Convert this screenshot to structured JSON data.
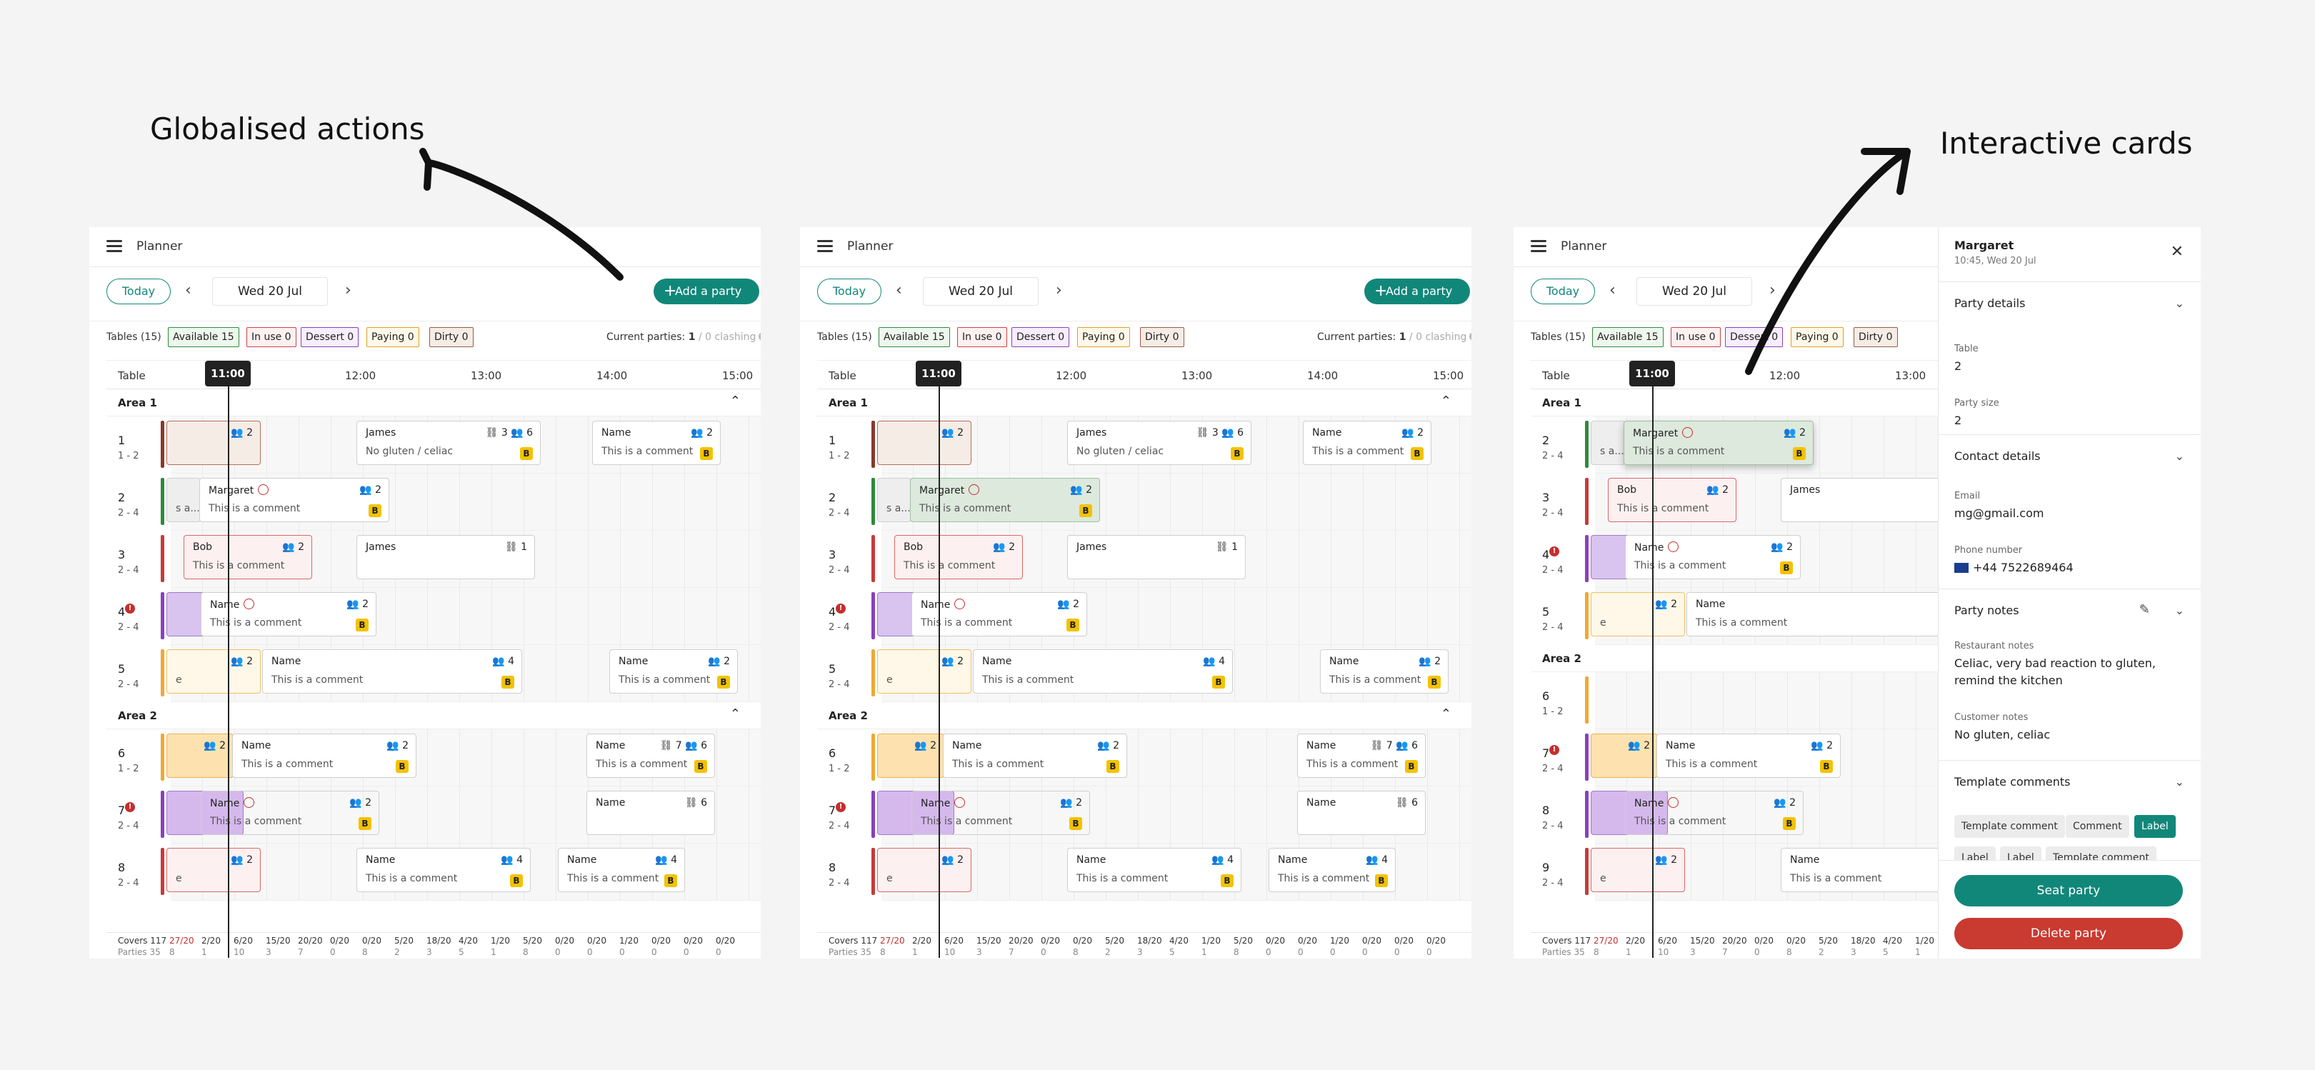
{
  "captions": {
    "left": "Globalised actions",
    "right": "Interactive cards"
  },
  "app": {
    "title": "Planner",
    "today_label": "Today",
    "date": "Wed 20 Jul",
    "add_party_label": "Add a party",
    "tables_label": "Tables (15)",
    "chips": [
      {
        "label": "Available 15",
        "color": "#2e8b3a",
        "bg": "#eef7ee"
      },
      {
        "label": "In use  0",
        "color": "#d04040",
        "bg": "#fdf0f0"
      },
      {
        "label": "Dessert  0",
        "color": "#8a3fbf",
        "bg": "#f6eefb"
      },
      {
        "label": "Paying  0",
        "color": "#e0a020",
        "bg": "#fff8e8"
      },
      {
        "label": "Dirty  0",
        "color": "#9a5a40",
        "bg": "#f6ece6"
      }
    ],
    "current_prefix": "Current parties: ",
    "current_count": "1",
    "current_clashing": " / 0 clashing",
    "table_col": "Table",
    "now": "11:00",
    "times": [
      "12:00",
      "13:00",
      "14:00",
      "15:00"
    ],
    "areas": [
      "Area 1",
      "Area 2"
    ],
    "covers_label": "Covers 117",
    "parties_label": "Parties 35",
    "footer_top": [
      "27/20",
      "2/20",
      "6/20",
      "15/20",
      "20/20",
      "0/20",
      "0/20",
      "5/20",
      "18/20",
      "4/20",
      "1/20",
      "5/20",
      "0/20",
      "0/20",
      "1/20",
      "0/20",
      "0/20",
      "0/20"
    ],
    "footer_bottom": [
      "8",
      "1",
      "10",
      "3",
      "7",
      "0",
      "8",
      "2",
      "3",
      "5",
      "1",
      "8",
      "0",
      "0",
      "0",
      "0",
      "0",
      "0"
    ]
  },
  "panel1_rows": [
    {
      "num": "1",
      "cap": "1 - 2"
    },
    {
      "num": "2",
      "cap": "2 - 4"
    },
    {
      "num": "3",
      "cap": "2 - 4"
    },
    {
      "num": "4",
      "cap": "2 - 4",
      "warn": "2"
    },
    {
      "num": "5",
      "cap": "2 - 4"
    },
    {
      "num": "6",
      "cap": "1 - 2"
    },
    {
      "num": "7",
      "cap": "2 - 4",
      "warn": "2"
    },
    {
      "num": "8",
      "cap": "2 - 4"
    }
  ],
  "panel3_rows": [
    {
      "num": "2",
      "cap": "2 - 4"
    },
    {
      "num": "3",
      "cap": "2 - 4"
    },
    {
      "num": "4",
      "cap": "2 - 4",
      "warn": "2"
    },
    {
      "num": "5",
      "cap": "2 - 4"
    },
    {
      "num": "6",
      "cap": "1 - 2"
    },
    {
      "num": "7",
      "cap": "2 - 4",
      "warn": "2"
    },
    {
      "num": "8",
      "cap": "2 - 4"
    },
    {
      "num": "9",
      "cap": "2 - 4"
    }
  ],
  "cards": {
    "james": "James",
    "name": "Name",
    "bob": "Bob",
    "margaret": "Margaret",
    "comment": "This is a comment",
    "gluten": "No gluten / celiac",
    "trunc": "s a...",
    "trunc2": "e",
    "n2": "2",
    "n3": "3",
    "n4": "4",
    "n6": "6",
    "n7": "7",
    "n1": "1",
    "badge": "B"
  },
  "sidebar": {
    "name": "Margaret",
    "sub": "10:45, Wed 20 Jul",
    "party_details": "Party details",
    "table_label": "Table",
    "table_value": "2",
    "size_label": "Party size",
    "size_value": "2",
    "contact_details": "Contact details",
    "email_label": "Email",
    "email_value": "mg@gmail.com",
    "phone_label": "Phone number",
    "phone_value": "+44 7522689464",
    "party_notes": "Party notes",
    "restaurant_notes_label": "Restaurant notes",
    "restaurant_notes": "Celiac, very bad reaction to gluten, remind the kitchen",
    "customer_notes_label": "Customer notes",
    "customer_notes": "No gluten, celiac",
    "template_comments": "Template comments",
    "chips": [
      "Template comment",
      "Comment",
      "Label",
      "Label",
      "Label",
      "Template comment"
    ],
    "seat_label": "Seat party",
    "delete_label": "Delete party"
  }
}
